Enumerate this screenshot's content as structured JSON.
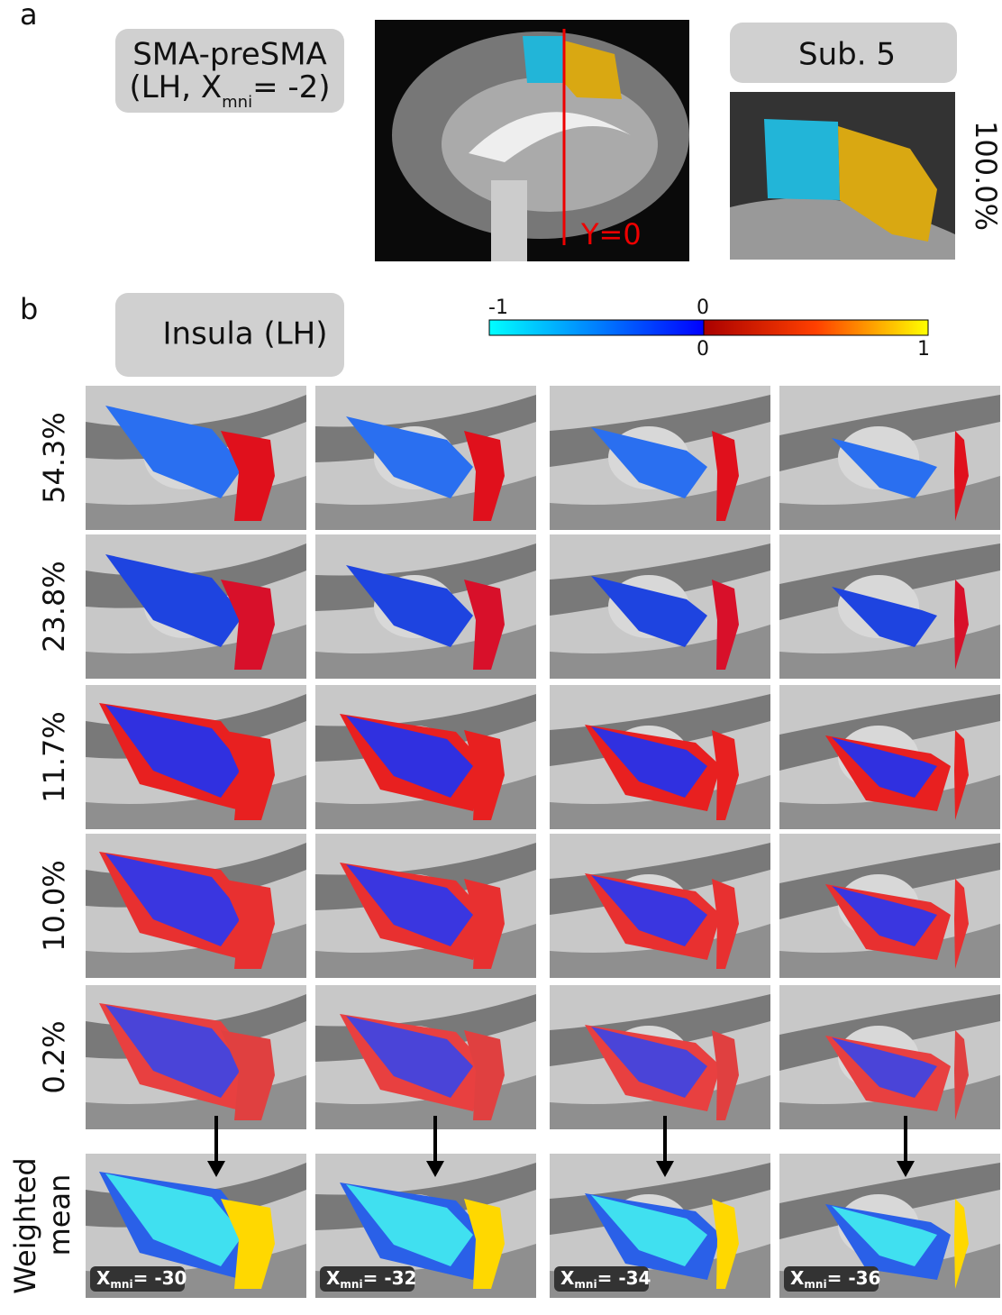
{
  "panel_a": {
    "label": "a",
    "region": {
      "name": "SMA-preSMA",
      "coord_prefix": "(LH, X",
      "coord_sub": "mni",
      "coord_suffix": "= -2)"
    },
    "slice_label": "Y=0",
    "subject": "Sub. 5",
    "percent": "100.0%"
  },
  "panel_b": {
    "label": "b",
    "region": "Insula (LH)",
    "colorbar": {
      "neg_min": "-1",
      "neg_max": "0",
      "pos_min": "0",
      "pos_max": "1"
    },
    "rows": [
      "54.3%",
      "23.8%",
      "11.7%",
      "10.0%",
      "0.2%"
    ],
    "mean_label": [
      "Weighted",
      "mean"
    ],
    "columns": [
      {
        "x_prefix": "X",
        "x_sub": "mni",
        "x_value": "= -30"
      },
      {
        "x_prefix": "X",
        "x_sub": "mni",
        "x_value": "= -32"
      },
      {
        "x_prefix": "X",
        "x_sub": "mni",
        "x_value": "= -34"
      },
      {
        "x_prefix": "X",
        "x_sub": "mni",
        "x_value": "= -36"
      }
    ]
  }
}
